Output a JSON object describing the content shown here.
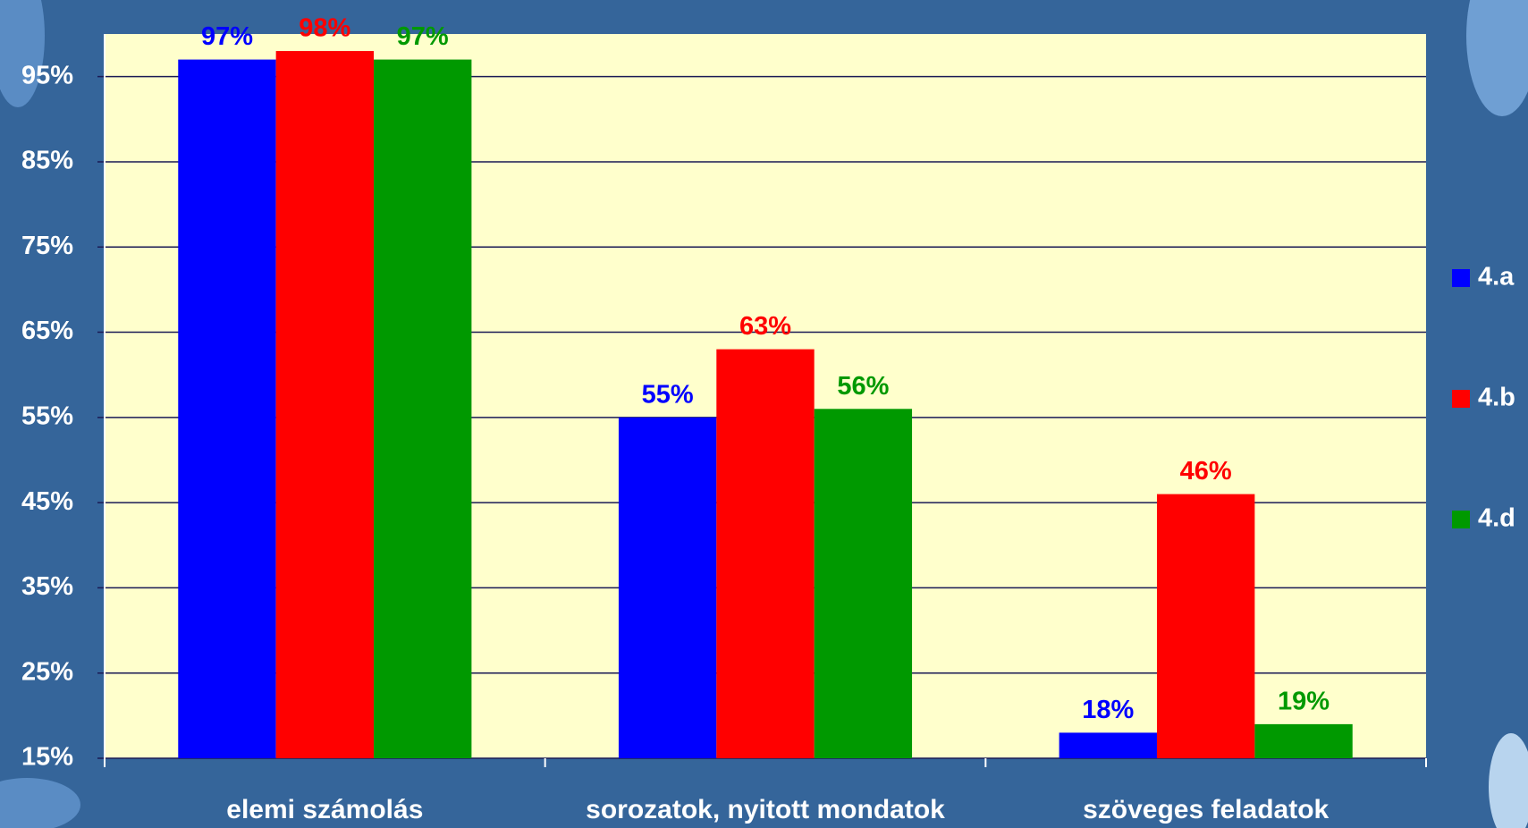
{
  "chart_data": {
    "type": "bar",
    "categories": [
      "elemi számolás",
      "sorozatok, nyitott mondatok",
      "szöveges feladatok"
    ],
    "series": [
      {
        "name": "4.a",
        "color": "#0000ff",
        "values": [
          97,
          55,
          18
        ],
        "value_labels": [
          "97%",
          "55%",
          "18%"
        ]
      },
      {
        "name": "4.b",
        "color": "#ff0000",
        "values": [
          98,
          63,
          46
        ],
        "value_labels": [
          "98%",
          "63%",
          "46%"
        ]
      },
      {
        "name": "4.d",
        "color": "#009900",
        "values": [
          97,
          56,
          19
        ],
        "value_labels": [
          "97%",
          "56%",
          "19%"
        ]
      }
    ],
    "ylim": [
      15,
      100
    ],
    "yticks": [
      {
        "value": 15,
        "label": "15%"
      },
      {
        "value": 25,
        "label": "25%"
      },
      {
        "value": 35,
        "label": "35%"
      },
      {
        "value": 45,
        "label": "45%"
      },
      {
        "value": 55,
        "label": "55%"
      },
      {
        "value": 65,
        "label": "65%"
      },
      {
        "value": 75,
        "label": "75%"
      },
      {
        "value": 85,
        "label": "85%"
      },
      {
        "value": 95,
        "label": "95%"
      }
    ],
    "grid": true,
    "legend": "right"
  }
}
